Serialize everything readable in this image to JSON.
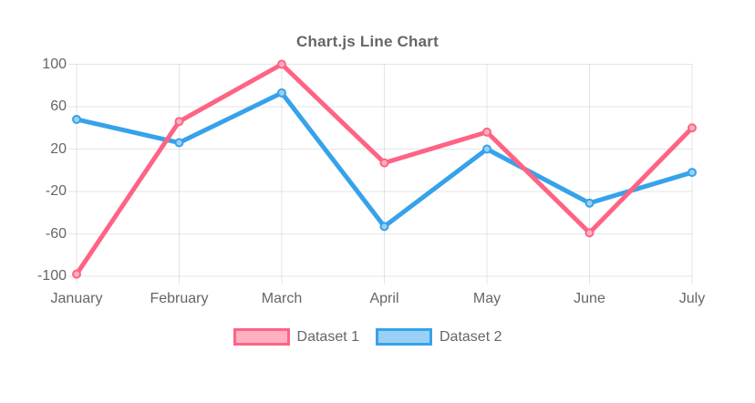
{
  "chart_data": {
    "type": "line",
    "title": "Chart.js Line Chart",
    "categories": [
      "January",
      "February",
      "March",
      "April",
      "May",
      "June",
      "July"
    ],
    "series": [
      {
        "name": "Dataset 1",
        "values": [
          -98,
          46,
          100,
          7,
          36,
          -59,
          40
        ],
        "line_color": "#FF6384",
        "fill_color": "#FFB1C1"
      },
      {
        "name": "Dataset 2",
        "values": [
          48,
          26,
          73,
          -53,
          20,
          -31,
          -2
        ],
        "line_color": "#36A2EB",
        "fill_color": "#9BD0F5"
      }
    ],
    "xlabel": "",
    "ylabel": "",
    "ylim": [
      -100,
      100
    ],
    "y_ticks": [
      100,
      60,
      20,
      -20,
      -60,
      -100
    ],
    "grid": true,
    "legend_position": "bottom",
    "axis_text_color": "#666666",
    "grid_color": "rgba(0,0,0,0.1)",
    "background_color": "#FFFFFF"
  }
}
